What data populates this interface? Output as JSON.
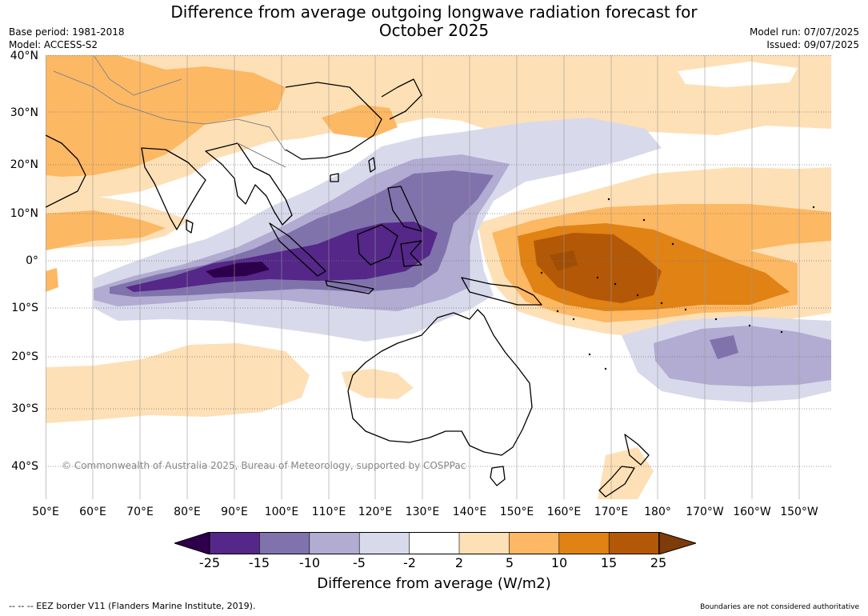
{
  "title_line1": "Difference from average outgoing longwave radiation forecast for",
  "title_line2": "October 2025",
  "base_period": "Base period: 1981-2018",
  "model": "Model: ACCESS-S2",
  "model_run": "Model run: 07/07/2025",
  "issued": "Issued: 09/07/2025",
  "lat_labels": [
    "40°N",
    "30°N",
    "20°N",
    "10°N",
    "0°",
    "10°S",
    "20°S",
    "30°S",
    "40°S"
  ],
  "lon_labels": [
    "50°E",
    "60°E",
    "70°E",
    "80°E",
    "90°E",
    "100°E",
    "110°E",
    "120°E",
    "130°E",
    "140°E",
    "150°E",
    "160°E",
    "170°E",
    "180°",
    "170°W",
    "160°W",
    "150°W"
  ],
  "copyright": "© Commonwealth of Australia 2025, Bureau of Meteorology, supported by COSPPac",
  "colorbar": {
    "ticks": [
      "-25",
      "-15",
      "-10",
      "-5",
      "-2",
      "2",
      "5",
      "10",
      "15",
      "25"
    ],
    "colors": [
      "#2d004b",
      "#542788",
      "#8073ac",
      "#b2abd2",
      "#d8daeb",
      "#ffffff",
      "#fee0b6",
      "#fdb863",
      "#e08214",
      "#b35806",
      "#7f3b08"
    ],
    "label": "Difference from average (W/m2)"
  },
  "eez_note": "--  --  -- EEZ border V11 (Flanders Marine Institute, 2019).",
  "boundaries_note": "Boundaries are not considered authoritative"
}
